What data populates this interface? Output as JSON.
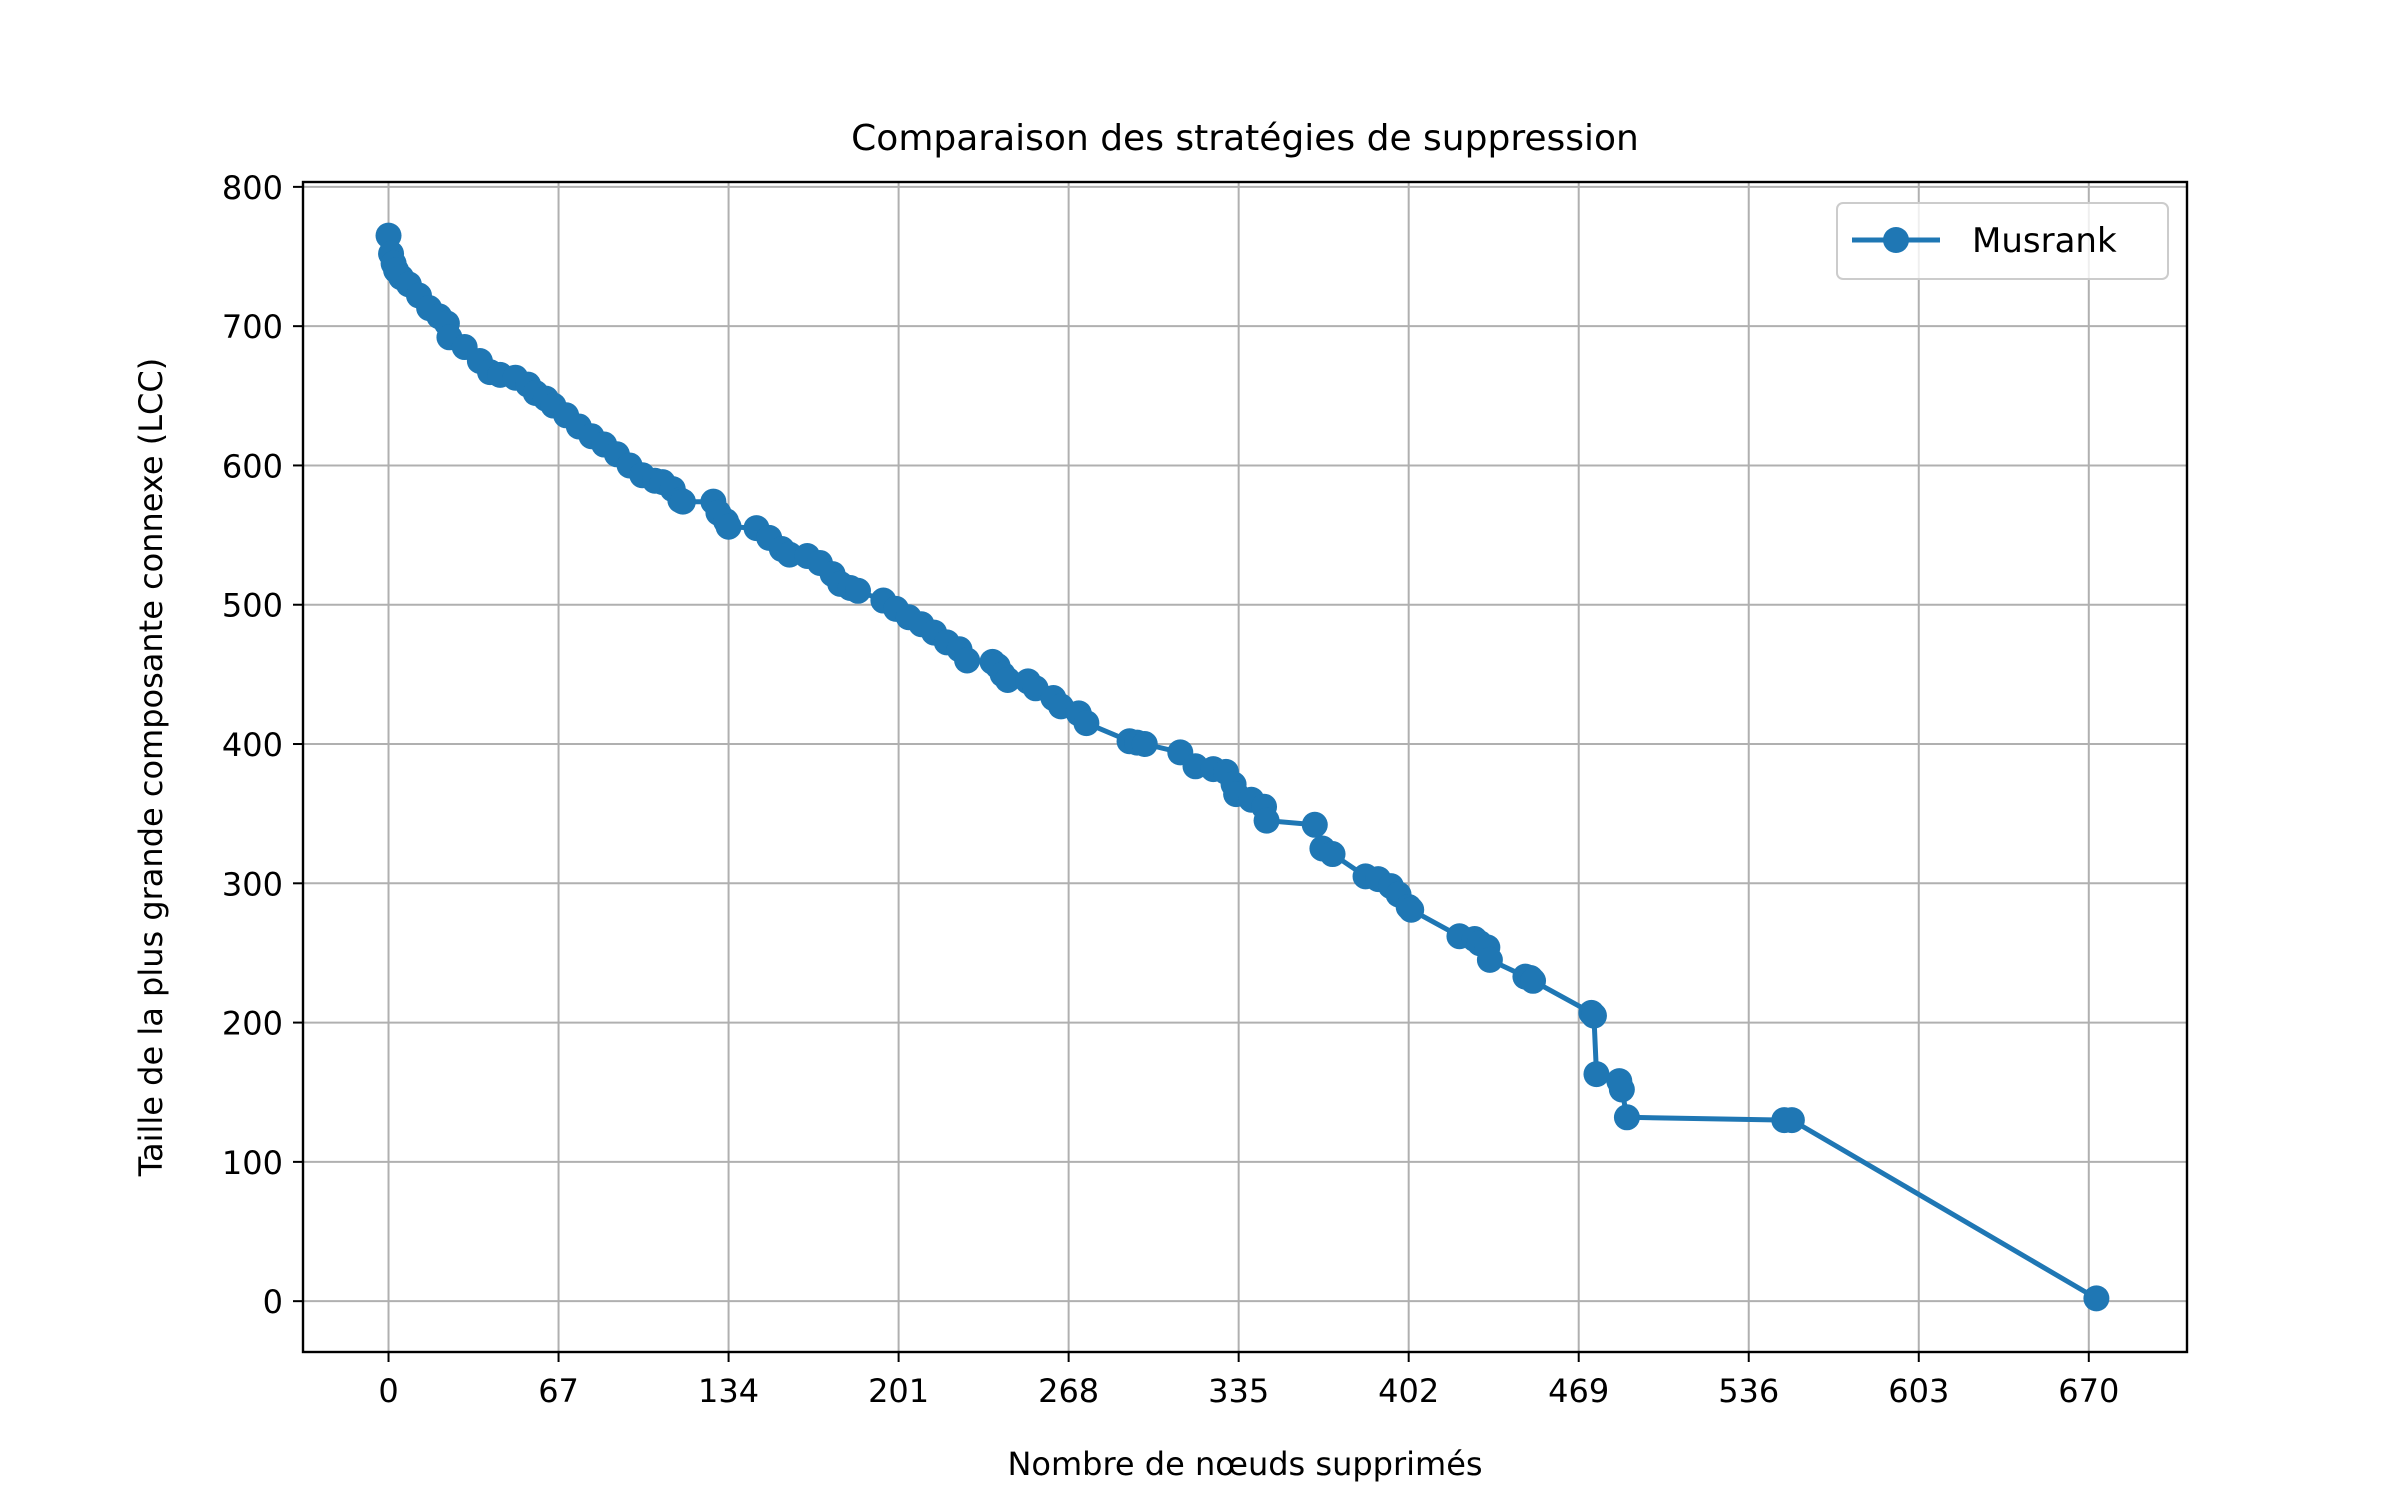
{
  "chart_data": {
    "type": "line",
    "title": "Comparaison des stratégies de suppression",
    "xlabel": "Nombre de nœuds supprimés",
    "ylabel": "Taille de la plus grande composante connexe (LCC)",
    "xlim": [
      -33.7,
      708.7
    ],
    "ylim": [
      -36.5,
      803.5
    ],
    "xticks": [
      0,
      67,
      134,
      201,
      268,
      335,
      402,
      469,
      536,
      603,
      670
    ],
    "yticks": [
      0,
      100,
      200,
      300,
      400,
      500,
      600,
      700,
      800
    ],
    "grid": true,
    "legend_position": "upper right",
    "series": [
      {
        "name": "Musrank",
        "color": "#1f77b4",
        "marker": "o",
        "x": [
          0,
          1,
          2,
          3,
          5,
          8,
          12,
          16,
          20,
          23,
          24,
          30,
          36,
          40,
          44,
          50,
          55,
          58,
          62,
          65,
          70,
          75,
          80,
          85,
          90,
          95,
          100,
          105,
          108,
          112,
          115,
          116,
          128,
          130,
          133,
          134,
          145,
          150,
          155,
          158,
          165,
          170,
          175,
          178,
          182,
          185,
          195,
          200,
          205,
          210,
          215,
          220,
          225,
          228,
          238,
          240,
          242,
          244,
          252,
          255,
          262,
          265,
          272,
          275,
          292,
          295,
          298,
          312,
          318,
          325,
          330,
          333,
          334,
          340,
          345,
          346,
          365,
          368,
          372,
          385,
          390,
          395,
          398,
          402,
          403,
          422,
          428,
          430,
          433,
          434,
          448,
          450,
          451,
          474,
          475,
          476,
          485,
          486,
          488,
          550,
          553,
          673
        ],
        "y": [
          765,
          752,
          745,
          740,
          735,
          730,
          722,
          713,
          707,
          702,
          692,
          685,
          675,
          667,
          665,
          663,
          658,
          652,
          648,
          643,
          636,
          628,
          621,
          615,
          608,
          600,
          593,
          589,
          588,
          583,
          575,
          574,
          574,
          566,
          560,
          556,
          555,
          548,
          540,
          536,
          535,
          530,
          522,
          515,
          512,
          510,
          503,
          497,
          491,
          486,
          480,
          473,
          468,
          460,
          459,
          456,
          450,
          446,
          445,
          440,
          433,
          427,
          422,
          415,
          402,
          401,
          400,
          394,
          384,
          382,
          380,
          371,
          364,
          360,
          355,
          345,
          342,
          325,
          321,
          305,
          303,
          298,
          292,
          283,
          281,
          262,
          260,
          257,
          254,
          245,
          233,
          232,
          230,
          207,
          205,
          163,
          158,
          152,
          132,
          130,
          130,
          2
        ]
      }
    ]
  }
}
